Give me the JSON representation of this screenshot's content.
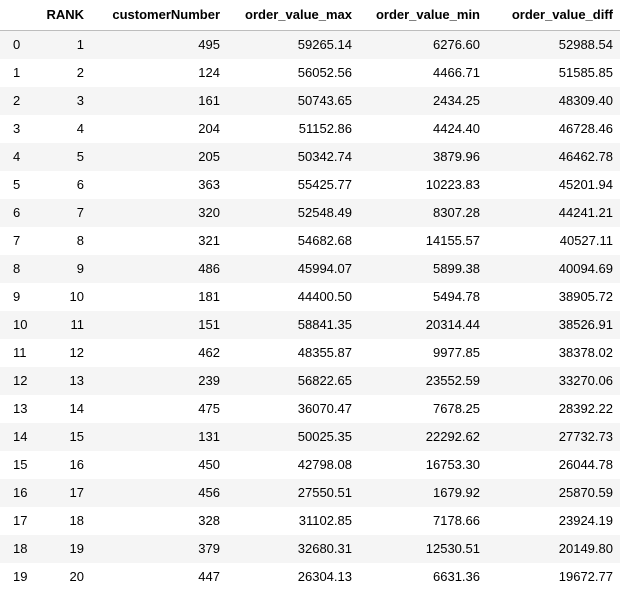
{
  "table": {
    "columns": [
      "",
      "RANK",
      "customerNumber",
      "order_value_max",
      "order_value_min",
      "order_value_diff"
    ],
    "rows": [
      [
        "0",
        "1",
        "495",
        "59265.14",
        "6276.60",
        "52988.54"
      ],
      [
        "1",
        "2",
        "124",
        "56052.56",
        "4466.71",
        "51585.85"
      ],
      [
        "2",
        "3",
        "161",
        "50743.65",
        "2434.25",
        "48309.40"
      ],
      [
        "3",
        "4",
        "204",
        "51152.86",
        "4424.40",
        "46728.46"
      ],
      [
        "4",
        "5",
        "205",
        "50342.74",
        "3879.96",
        "46462.78"
      ],
      [
        "5",
        "6",
        "363",
        "55425.77",
        "10223.83",
        "45201.94"
      ],
      [
        "6",
        "7",
        "320",
        "52548.49",
        "8307.28",
        "44241.21"
      ],
      [
        "7",
        "8",
        "321",
        "54682.68",
        "14155.57",
        "40527.11"
      ],
      [
        "8",
        "9",
        "486",
        "45994.07",
        "5899.38",
        "40094.69"
      ],
      [
        "9",
        "10",
        "181",
        "44400.50",
        "5494.78",
        "38905.72"
      ],
      [
        "10",
        "11",
        "151",
        "58841.35",
        "20314.44",
        "38526.91"
      ],
      [
        "11",
        "12",
        "462",
        "48355.87",
        "9977.85",
        "38378.02"
      ],
      [
        "12",
        "13",
        "239",
        "56822.65",
        "23552.59",
        "33270.06"
      ],
      [
        "13",
        "14",
        "475",
        "36070.47",
        "7678.25",
        "28392.22"
      ],
      [
        "14",
        "15",
        "131",
        "50025.35",
        "22292.62",
        "27732.73"
      ],
      [
        "15",
        "16",
        "450",
        "42798.08",
        "16753.30",
        "26044.78"
      ],
      [
        "16",
        "17",
        "456",
        "27550.51",
        "1679.92",
        "25870.59"
      ],
      [
        "17",
        "18",
        "328",
        "31102.85",
        "7178.66",
        "23924.19"
      ],
      [
        "18",
        "19",
        "379",
        "32680.31",
        "12530.51",
        "20149.80"
      ],
      [
        "19",
        "20",
        "447",
        "26304.13",
        "6631.36",
        "19672.77"
      ]
    ]
  }
}
